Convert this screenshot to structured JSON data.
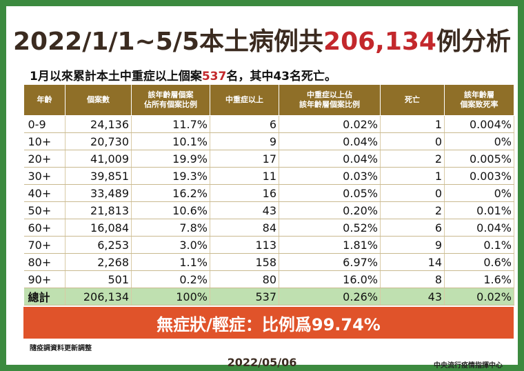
{
  "title": {
    "part1": "2022/1/1~5/5本土病例共",
    "highlight": "206,134",
    "part2": "例分析"
  },
  "subtitle": {
    "part1": "1月以來累計本土中重症以上個案",
    "highlight": "537",
    "part2": "名，其中43名死亡。"
  },
  "table": {
    "headers": [
      [
        "年齡"
      ],
      [
        "個案數"
      ],
      [
        "該年齡層個案",
        "佔所有個案比例"
      ],
      [
        "中重症以上"
      ],
      [
        "中重症以上佔",
        "該年齡層個案比例"
      ],
      [
        "死亡"
      ],
      [
        "該年齡層",
        "個案致死率"
      ]
    ],
    "rows": [
      [
        "0-9",
        "24,136",
        "11.7%",
        "6",
        "0.02%",
        "1",
        "0.004%"
      ],
      [
        "10+",
        "20,730",
        "10.1%",
        "9",
        "0.04%",
        "0",
        "0%"
      ],
      [
        "20+",
        "41,009",
        "19.9%",
        "17",
        "0.04%",
        "2",
        "0.005%"
      ],
      [
        "30+",
        "39,851",
        "19.3%",
        "11",
        "0.03%",
        "1",
        "0.003%"
      ],
      [
        "40+",
        "33,489",
        "16.2%",
        "16",
        "0.05%",
        "0",
        "0%"
      ],
      [
        "50+",
        "21,813",
        "10.6%",
        "43",
        "0.20%",
        "2",
        "0.01%"
      ],
      [
        "60+",
        "16,084",
        "7.8%",
        "84",
        "0.52%",
        "6",
        "0.04%"
      ],
      [
        "70+",
        "6,253",
        "3.0%",
        "113",
        "1.81%",
        "9",
        "0.1%"
      ],
      [
        "80+",
        "2,268",
        "1.1%",
        "158",
        "6.97%",
        "14",
        "0.6%"
      ],
      [
        "90+",
        "501",
        "0.2%",
        "80",
        "16.0%",
        "8",
        "1.6%"
      ]
    ],
    "total": [
      "總計",
      "206,134",
      "100%",
      "537",
      "0.26%",
      "43",
      "0.02%"
    ]
  },
  "banner": "無症狀/輕症：比例爲99.74%",
  "note": "隨疫調資料更新調整",
  "date": "2022/05/06",
  "agency": "中央流行疫情指揮中心",
  "colors": {
    "frame": "#3c8a3f",
    "header_bg": "#8f6f28",
    "highlight": "#c3282c",
    "total_row": "#bfe0b0",
    "banner": "#e0532a"
  }
}
